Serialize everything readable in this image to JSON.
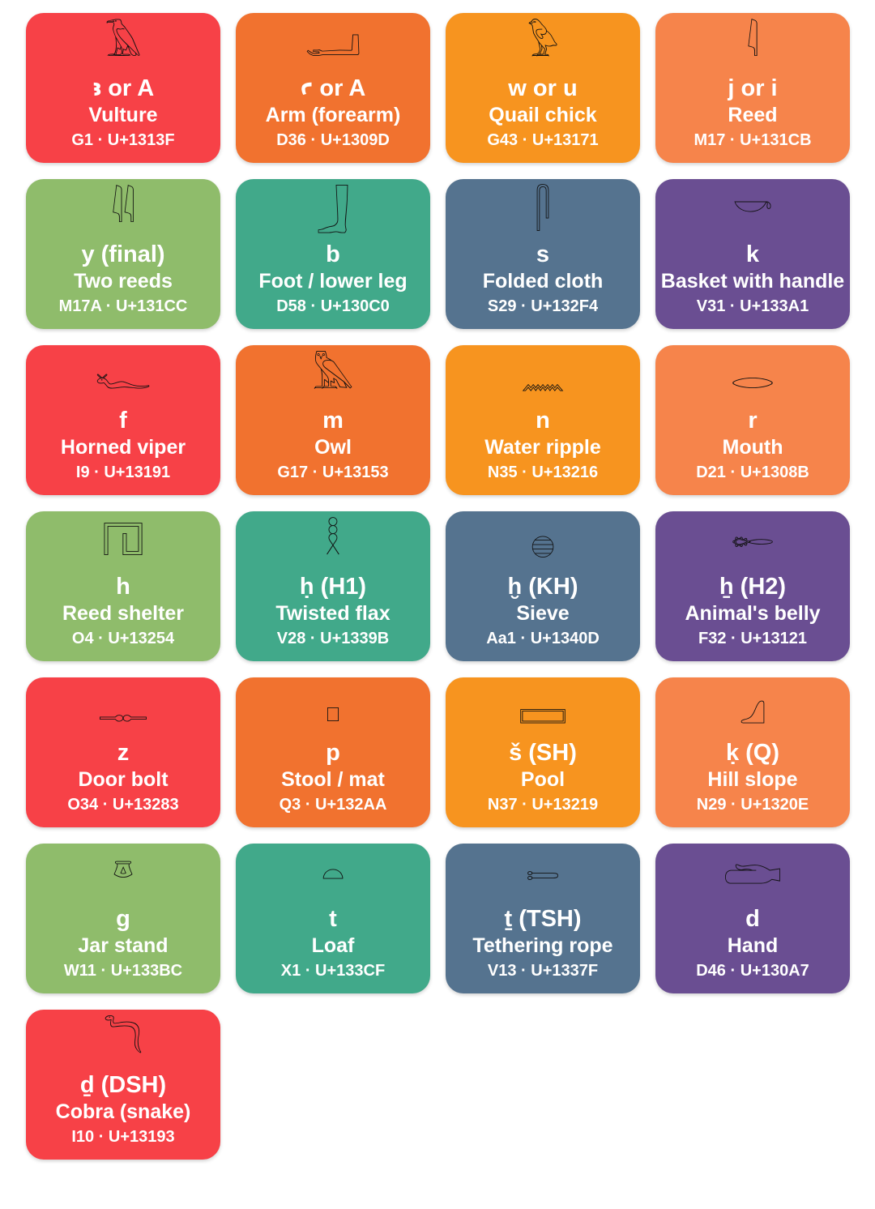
{
  "colors": {
    "red": "#f74147",
    "orange": "#f1722f",
    "amber": "#f7941f",
    "light_orange": "#f6844b",
    "green": "#8fbc6b",
    "teal": "#41a98a",
    "slate": "#55738f",
    "purple": "#6a4e92"
  },
  "cards": [
    {
      "glyph": "𓄿",
      "phoneme": "ꜣ or A",
      "name": "Vulture",
      "code": "G1 · U+1313F",
      "color": "red"
    },
    {
      "glyph": "𓂝",
      "phoneme": "ꜥ or A",
      "name": "Arm (forearm)",
      "code": "D36 · U+1309D",
      "color": "orange"
    },
    {
      "glyph": "𓅱",
      "phoneme": "w or u",
      "name": "Quail chick",
      "code": "G43 · U+13171",
      "color": "amber"
    },
    {
      "glyph": "𓇋",
      "phoneme": "j or i",
      "name": "Reed",
      "code": "M17 · U+131CB",
      "color": "light_orange"
    },
    {
      "glyph": "𓇌",
      "phoneme": "y (final)",
      "name": "Two reeds",
      "code": "M17A · U+131CC",
      "color": "green"
    },
    {
      "glyph": "𓃀",
      "phoneme": "b",
      "name": "Foot / lower leg",
      "code": "D58 · U+130C0",
      "color": "teal"
    },
    {
      "glyph": "𓋴",
      "phoneme": "s",
      "name": "Folded cloth",
      "code": "S29 · U+132F4",
      "color": "slate"
    },
    {
      "glyph": "𓎡",
      "phoneme": "k",
      "name": "Basket with handle",
      "code": "V31 · U+133A1",
      "color": "purple"
    },
    {
      "glyph": "𓆑",
      "phoneme": "f",
      "name": "Horned viper",
      "code": "I9 · U+13191",
      "color": "red"
    },
    {
      "glyph": "𓅓",
      "phoneme": "m",
      "name": "Owl",
      "code": "G17 · U+13153",
      "color": "orange"
    },
    {
      "glyph": "𓈖",
      "phoneme": "n",
      "name": "Water ripple",
      "code": "N35 · U+13216",
      "color": "amber"
    },
    {
      "glyph": "𓂋",
      "phoneme": "r",
      "name": "Mouth",
      "code": "D21 · U+1308B",
      "color": "light_orange"
    },
    {
      "glyph": "𓉔",
      "phoneme": "h",
      "name": "Reed shelter",
      "code": "O4 · U+13254",
      "color": "green"
    },
    {
      "glyph": "𓎛",
      "phoneme": "ḥ (H1)",
      "name": "Twisted flax",
      "code": "V28 · U+1339B",
      "color": "teal"
    },
    {
      "glyph": "𓐍",
      "phoneme": "ḫ (KH)",
      "name": "Sieve",
      "code": "Aa1 · U+1340D",
      "color": "slate"
    },
    {
      "glyph": "𓄡",
      "phoneme": "ẖ (H2)",
      "name": "Animal's belly",
      "code": "F32 · U+13121",
      "color": "purple"
    },
    {
      "glyph": "𓊃",
      "phoneme": "z",
      "name": "Door bolt",
      "code": "O34 · U+13283",
      "color": "red"
    },
    {
      "glyph": "𓊪",
      "phoneme": "p",
      "name": "Stool / mat",
      "code": "Q3 · U+132AA",
      "color": "orange"
    },
    {
      "glyph": "𓈙",
      "phoneme": "š (SH)",
      "name": "Pool",
      "code": "N37 · U+13219",
      "color": "amber"
    },
    {
      "glyph": "𓈎",
      "phoneme": "ḳ (Q)",
      "name": "Hill slope",
      "code": "N29 · U+1320E",
      "color": "light_orange"
    },
    {
      "glyph": "𓎼",
      "phoneme": "g",
      "name": "Jar stand",
      "code": "W11 · U+133BC",
      "color": "green"
    },
    {
      "glyph": "𓏏",
      "phoneme": "t",
      "name": "Loaf",
      "code": "X1 · U+133CF",
      "color": "teal"
    },
    {
      "glyph": "𓍿",
      "phoneme": "ṯ (TSH)",
      "name": "Tethering rope",
      "code": "V13 · U+1337F",
      "color": "slate"
    },
    {
      "glyph": "𓂧",
      "phoneme": "d",
      "name": "Hand",
      "code": "D46 · U+130A7",
      "color": "purple"
    },
    {
      "glyph": "𓆓",
      "phoneme": "ḏ (DSH)",
      "name": "Cobra (snake)",
      "code": "I10 · U+13193",
      "color": "red"
    }
  ]
}
